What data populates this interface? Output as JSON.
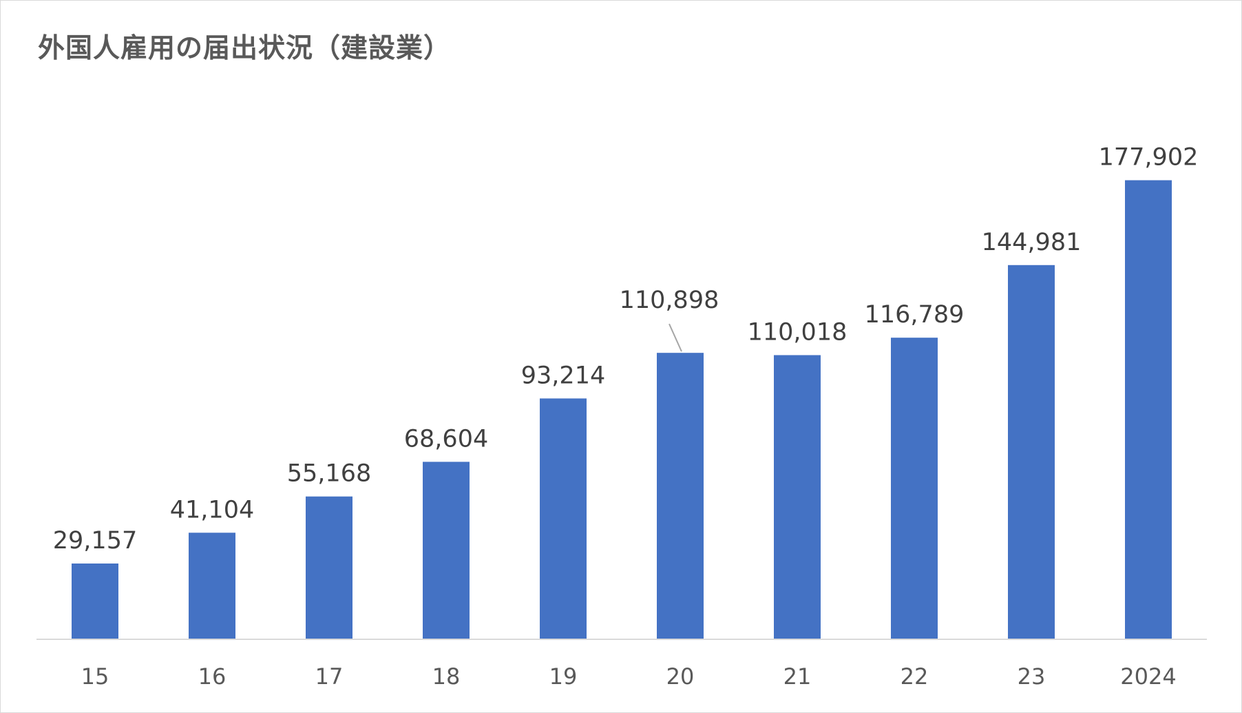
{
  "chart_data": {
    "type": "bar",
    "title": "外国人雇用の届出状況（建設業）",
    "categories": [
      "15",
      "16",
      "17",
      "18",
      "19",
      "20",
      "21",
      "22",
      "23",
      "2024"
    ],
    "series": [
      {
        "values": [
          29157,
          41104,
          55168,
          68604,
          93214,
          110898,
          110018,
          116789,
          144981,
          177902
        ],
        "labels": [
          "29,157",
          "41,104",
          "55,168",
          "68,604",
          "93,214",
          "110,898",
          "110,018",
          "116,789",
          "144,981",
          "177,902"
        ],
        "color": "#4472c4"
      }
    ],
    "xlabel": "",
    "ylabel": "",
    "ylim": [
      0,
      180000
    ],
    "grid": false,
    "legend": "none",
    "axis_color": "#d9d9d9",
    "leader_line_color": "#a6a6a6"
  }
}
